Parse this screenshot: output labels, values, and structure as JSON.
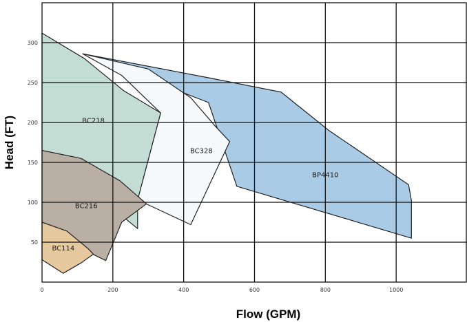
{
  "chart_data": {
    "type": "area",
    "title": "",
    "xlabel": "Flow (GPM)",
    "ylabel": "Head (FT)",
    "xlim": [
      0,
      1200
    ],
    "ylim": [
      0,
      350
    ],
    "x_ticks": [
      0,
      200,
      400,
      600,
      800,
      1000
    ],
    "y_ticks": [
      50,
      100,
      150,
      200,
      250,
      300
    ],
    "grid": true,
    "regions": [
      {
        "name": "BP4410",
        "color": "#a9cbe6",
        "points": [
          [
            115,
            286
          ],
          [
            470,
            256
          ],
          [
            675,
            238
          ],
          [
            810,
            190
          ],
          [
            1035,
            122
          ],
          [
            1043,
            102
          ],
          [
            1043,
            55
          ],
          [
            550,
            120
          ],
          [
            470,
            225
          ]
        ]
      },
      {
        "name": "BC328",
        "color": "#f5f9fb",
        "points": [
          [
            115,
            286
          ],
          [
            300,
            267
          ],
          [
            420,
            231
          ],
          [
            490,
            195
          ],
          [
            530,
            176
          ],
          [
            420,
            72
          ],
          [
            270,
            103
          ],
          [
            335,
            212
          ],
          [
            225,
            259
          ]
        ]
      },
      {
        "name": "BC218",
        "color": "#c3dcd4",
        "points": [
          [
            0,
            312
          ],
          [
            120,
            280
          ],
          [
            230,
            240
          ],
          [
            335,
            212
          ],
          [
            270,
            103
          ],
          [
            270,
            67
          ],
          [
            0,
            165
          ]
        ]
      },
      {
        "name": "BC216",
        "color": "#b9afa4",
        "points": [
          [
            0,
            165
          ],
          [
            110,
            155
          ],
          [
            220,
            127
          ],
          [
            295,
            98
          ],
          [
            225,
            75
          ],
          [
            180,
            27
          ],
          [
            120,
            40
          ],
          [
            0,
            75
          ]
        ]
      },
      {
        "name": "BC114",
        "color": "#e7c9a0",
        "points": [
          [
            0,
            75
          ],
          [
            70,
            64
          ],
          [
            130,
            42
          ],
          [
            145,
            35
          ],
          [
            110,
            24
          ],
          [
            60,
            11
          ],
          [
            0,
            28
          ]
        ]
      }
    ],
    "labels": [
      {
        "series": "BC218",
        "x": 145,
        "y": 203
      },
      {
        "series": "BC328",
        "x": 450,
        "y": 165
      },
      {
        "series": "BP4410",
        "x": 800,
        "y": 135
      },
      {
        "series": "BC216",
        "x": 125,
        "y": 96
      },
      {
        "series": "BC114",
        "x": 60,
        "y": 43
      }
    ]
  }
}
